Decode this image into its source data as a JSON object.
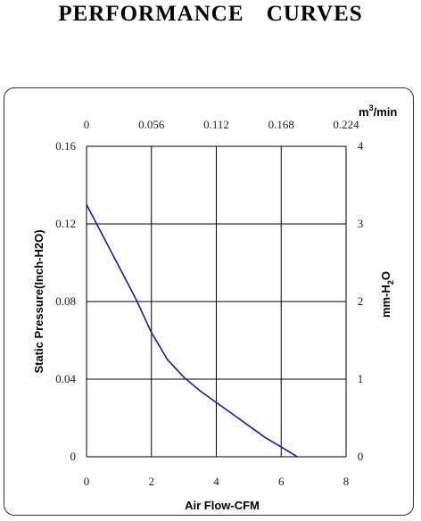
{
  "page": {
    "title": "PERFORMANCE    CURVES"
  },
  "chart_data": {
    "type": "line",
    "title": "",
    "xlabel": "Air Flow-CFM",
    "ylabel": "Static Pressure(Inch-H2O)",
    "x2label": "m3/min",
    "y2label": "mm-H2O",
    "xlim": [
      0,
      8
    ],
    "ylim": [
      0,
      0.16
    ],
    "x2lim": [
      0,
      0.224
    ],
    "y2lim": [
      0,
      4
    ],
    "x_ticks": [
      "0",
      "2",
      "4",
      "6",
      "8"
    ],
    "y_ticks": [
      "0",
      "0.04",
      "0.08",
      "0.12",
      "0.16"
    ],
    "x2_ticks": [
      "0",
      "0.056",
      "0.112",
      "0.168",
      "0.224"
    ],
    "y2_ticks": [
      "0",
      "1",
      "2",
      "3",
      "4"
    ],
    "grid": true,
    "colors": {
      "curve": "#1c1c8c",
      "grid": "#000000"
    },
    "series": [
      {
        "x": [
          0,
          0.5,
          1.0,
          1.5,
          2.0,
          2.5,
          3.0,
          3.5,
          4.0,
          4.5,
          5.0,
          5.5,
          6.0,
          6.5
        ],
        "y": [
          0.13,
          0.114,
          0.098,
          0.082,
          0.064,
          0.05,
          0.041,
          0.034,
          0.028,
          0.022,
          0.016,
          0.01,
          0.005,
          0.0
        ]
      }
    ]
  }
}
